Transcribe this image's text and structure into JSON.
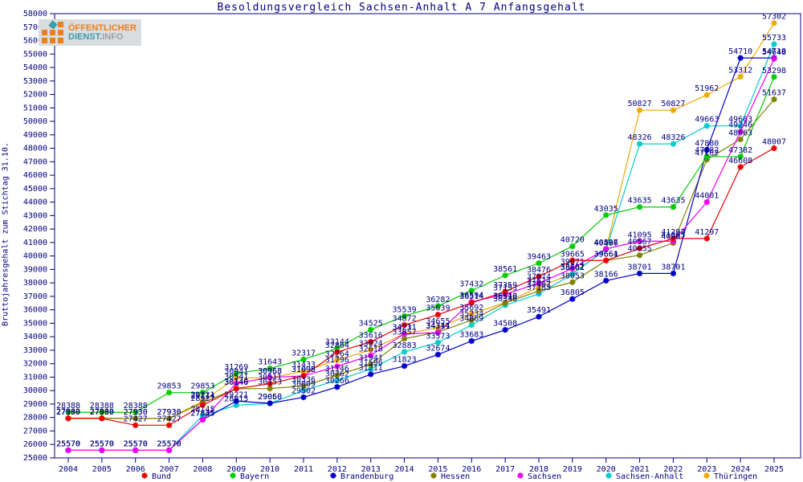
{
  "title": "Besoldungsvergleich Sachsen-Anhalt A 7 Anfangsgehalt",
  "logo": {
    "line1": "ÖFFENTLICHER",
    "line2a": "DIENST.",
    "line2b": "INFO"
  },
  "y_axis": {
    "label": "Bruttojahresgehalt zum Stichtag 31.10.",
    "min": 25000,
    "max": 58000,
    "step": 1000
  },
  "x_axis": {
    "years": [
      2004,
      2005,
      2006,
      2007,
      2008,
      2009,
      2010,
      2011,
      2012,
      2013,
      2014,
      2015,
      2016,
      2017,
      2018,
      2019,
      2020,
      2021,
      2022,
      2023,
      2024,
      2025
    ]
  },
  "colors": {
    "axis": "#000080",
    "label": "#000080",
    "background": "#ffffff"
  },
  "chart_data": {
    "type": "line",
    "title": "Besoldungsvergleich Sachsen-Anhalt A 7 Anfangsgehalt",
    "xlabel": "",
    "ylabel": "Bruttojahresgehalt zum Stichtag 31.10.",
    "ylim": [
      25000,
      58000
    ],
    "grid": false,
    "legend_position": "bottom",
    "point_labels": true,
    "x": [
      2004,
      2005,
      2006,
      2007,
      2008,
      2009,
      2010,
      2011,
      2012,
      2013,
      2014,
      2015,
      2016,
      2017,
      2018,
      2019,
      2020,
      2021,
      2022,
      2023,
      2024,
      2025
    ],
    "series": [
      {
        "name": "Bund",
        "color": "#ee0000",
        "values": [
          27930,
          27930,
          27427,
          27427,
          28927,
          30149,
          30511,
          31095,
          32864,
          33616,
          34872,
          35639,
          36514,
          37359,
          38476,
          39665,
          39664,
          40567,
          41297,
          41297,
          46608,
          48007
        ]
      },
      {
        "name": "Bayern",
        "color": "#00cc00",
        "values": [
          28388,
          28388,
          28388,
          29853,
          29853,
          31269,
          31643,
          32317,
          33144,
          34525,
          35539,
          36282,
          37432,
          38561,
          39463,
          40720,
          43035,
          43635,
          43635,
          47382,
          47382,
          53298
        ]
      },
      {
        "name": "Brandenburg",
        "color": "#0000cc",
        "values": [
          25570,
          25570,
          25570,
          25570,
          27845,
          29221,
          29060,
          29502,
          30266,
          31211,
          31823,
          32674,
          33683,
          34508,
          35491,
          36805,
          38166,
          38701,
          38701,
          47880,
          54710,
          54710
        ]
      },
      {
        "name": "Hessen",
        "color": "#808000",
        "values": [
          27930,
          27930,
          27930,
          27930,
          29114,
          30146,
          30153,
          30336,
          31146,
          31941,
          33857,
          34344,
          35234,
          36510,
          37402,
          38053,
          39661,
          40055,
          40967,
          47162,
          48663,
          51637
        ]
      },
      {
        "name": "Sachsen",
        "color": "#ee00ee",
        "values": [
          25570,
          25570,
          25570,
          25570,
          27835,
          30541,
          30968,
          31098,
          31796,
          32618,
          34211,
          34311,
          36594,
          37153,
          37974,
          39071,
          40527,
          41095,
          41095,
          44001,
          49246,
          54648
        ]
      },
      {
        "name": "Sachsen-Anhalt",
        "color": "#00cccc",
        "values": [
          25570,
          25570,
          25570,
          25570,
          28145,
          28915,
          29050,
          30009,
          30762,
          31596,
          32883,
          33573,
          34869,
          36346,
          37183,
          38661,
          40486,
          48326,
          48326,
          49663,
          49663,
          55733
        ]
      },
      {
        "name": "Thüringen",
        "color": "#f0a800",
        "values": [
          27960,
          27960,
          27930,
          27930,
          29221,
          30941,
          30953,
          31433,
          32264,
          33024,
          34231,
          34655,
          35692,
          36540,
          37674,
          38702,
          40496,
          50827,
          50827,
          51962,
          53312,
          57302
        ]
      }
    ]
  }
}
